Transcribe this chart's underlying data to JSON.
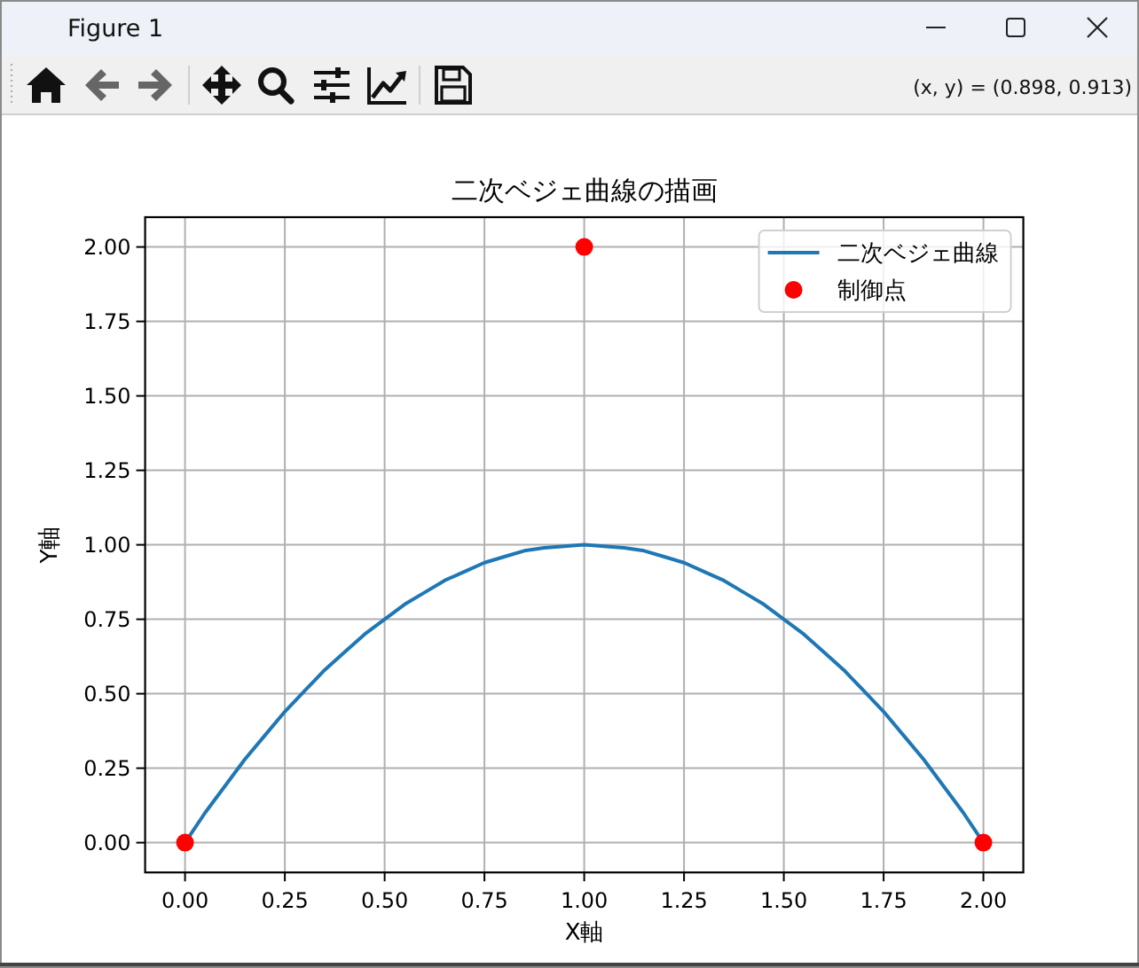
{
  "chart_data": {
    "type": "line",
    "title": "二次ベジェ曲線の描画",
    "xlabel": "X軸",
    "ylabel": "Y軸",
    "series": [
      {
        "name": "二次ベジェ曲線",
        "color": "#1f77b4",
        "marker": "none",
        "line_style": "solid",
        "x": [
          0,
          0.05,
          0.1,
          0.15,
          0.2,
          0.25,
          0.3,
          0.35,
          0.4,
          0.45,
          0.5,
          0.55,
          0.6,
          0.65,
          0.7,
          0.75,
          0.8,
          0.85,
          0.9,
          1.0,
          1.1,
          1.15,
          1.2,
          1.25,
          1.3,
          1.35,
          1.4,
          1.45,
          1.5,
          1.55,
          1.6,
          1.65,
          1.7,
          1.75,
          1.8,
          1.85,
          1.9,
          1.95,
          2.0
        ],
        "values": [
          0,
          0.1,
          0.19,
          0.28,
          0.36,
          0.44,
          0.51,
          0.58,
          0.64,
          0.7,
          0.75,
          0.8,
          0.84,
          0.88,
          0.91,
          0.94,
          0.96,
          0.98,
          0.99,
          1.0,
          0.99,
          0.98,
          0.96,
          0.94,
          0.91,
          0.88,
          0.84,
          0.8,
          0.75,
          0.7,
          0.64,
          0.58,
          0.51,
          0.44,
          0.36,
          0.28,
          0.19,
          0.1,
          0
        ]
      },
      {
        "name": "制御点",
        "type": "scatter",
        "color": "#ff0000",
        "marker": "circle",
        "x": [
          0,
          1,
          2
        ],
        "values": [
          0,
          2,
          0
        ]
      }
    ],
    "xlim": [
      -0.1,
      2.1
    ],
    "ylim": [
      -0.1,
      2.1
    ],
    "xticks": [
      {
        "value": 0,
        "label": "0.00"
      },
      {
        "value": 0.25,
        "label": "0.25"
      },
      {
        "value": 0.5,
        "label": "0.50"
      },
      {
        "value": 0.75,
        "label": "0.75"
      },
      {
        "value": 1,
        "label": "1.00"
      },
      {
        "value": 1.25,
        "label": "1.25"
      },
      {
        "value": 1.5,
        "label": "1.50"
      },
      {
        "value": 1.75,
        "label": "1.75"
      },
      {
        "value": 2,
        "label": "2.00"
      }
    ],
    "yticks": [
      {
        "value": 0,
        "label": "0.00"
      },
      {
        "value": 0.25,
        "label": "0.25"
      },
      {
        "value": 0.5,
        "label": "0.50"
      },
      {
        "value": 0.75,
        "label": "0.75"
      },
      {
        "value": 1,
        "label": "1.00"
      },
      {
        "value": 1.25,
        "label": "1.25"
      },
      {
        "value": 1.5,
        "label": "1.50"
      },
      {
        "value": 1.75,
        "label": "1.75"
      },
      {
        "value": 2,
        "label": "2.00"
      }
    ],
    "grid": true,
    "legend": "top right",
    "annotations": [
      "Figure 1",
      "(x, y) = (0.898, 0.913)"
    ]
  }
}
